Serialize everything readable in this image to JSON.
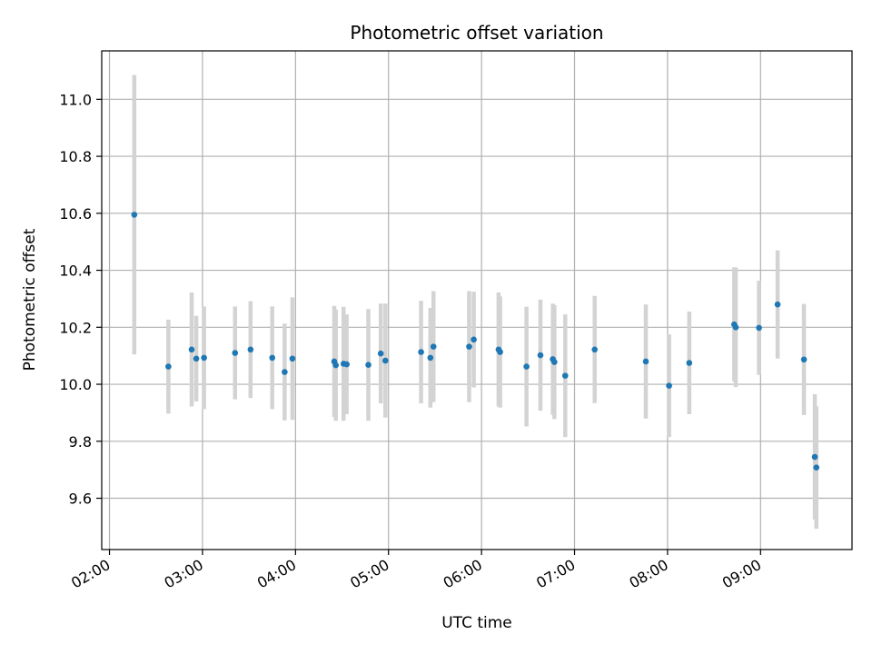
{
  "chart_data": {
    "type": "scatter",
    "title": "Photometric offset variation",
    "xlabel": "UTC time",
    "ylabel": "Photometric offset",
    "xlim": [
      "01:55",
      "09:59"
    ],
    "ylim": [
      9.42,
      11.17
    ],
    "grid": true,
    "colors": {
      "point": "#1f77b4",
      "errorbar": "#d3d3d3",
      "grid": "#b0b0b0"
    },
    "x_ticks": [
      "02:00",
      "03:00",
      "04:00",
      "05:00",
      "06:00",
      "07:00",
      "08:00",
      "09:00"
    ],
    "y_ticks": [
      "9.6",
      "9.8",
      "10.0",
      "10.2",
      "10.4",
      "10.6",
      "10.8",
      "11.0"
    ],
    "series": [
      {
        "points": [
          {
            "x": "02:16",
            "y": 10.595,
            "err": 0.49
          },
          {
            "x": "02:38",
            "y": 10.062,
            "err": 0.165
          },
          {
            "x": "02:53",
            "y": 10.122,
            "err": 0.2
          },
          {
            "x": "02:56",
            "y": 10.09,
            "err": 0.15
          },
          {
            "x": "03:01",
            "y": 10.093,
            "err": 0.18
          },
          {
            "x": "03:21",
            "y": 10.11,
            "err": 0.163
          },
          {
            "x": "03:31",
            "y": 10.122,
            "err": 0.17
          },
          {
            "x": "03:45",
            "y": 10.093,
            "err": 0.18
          },
          {
            "x": "03:53",
            "y": 10.043,
            "err": 0.17
          },
          {
            "x": "03:58",
            "y": 10.09,
            "err": 0.215
          },
          {
            "x": "04:25",
            "y": 10.08,
            "err": 0.195
          },
          {
            "x": "04:26",
            "y": 10.067,
            "err": 0.195
          },
          {
            "x": "04:31",
            "y": 10.072,
            "err": 0.2
          },
          {
            "x": "04:33",
            "y": 10.07,
            "err": 0.175
          },
          {
            "x": "04:47",
            "y": 10.068,
            "err": 0.196
          },
          {
            "x": "04:55",
            "y": 10.108,
            "err": 0.175
          },
          {
            "x": "04:58",
            "y": 10.083,
            "err": 0.2
          },
          {
            "x": "05:21",
            "y": 10.113,
            "err": 0.18
          },
          {
            "x": "05:27",
            "y": 10.093,
            "err": 0.175
          },
          {
            "x": "05:29",
            "y": 10.132,
            "err": 0.195
          },
          {
            "x": "05:52",
            "y": 10.132,
            "err": 0.195
          },
          {
            "x": "05:55",
            "y": 10.157,
            "err": 0.168
          },
          {
            "x": "06:11",
            "y": 10.122,
            "err": 0.2
          },
          {
            "x": "06:12",
            "y": 10.113,
            "err": 0.195
          },
          {
            "x": "06:29",
            "y": 10.062,
            "err": 0.21
          },
          {
            "x": "06:38",
            "y": 10.102,
            "err": 0.195
          },
          {
            "x": "06:46",
            "y": 10.088,
            "err": 0.195
          },
          {
            "x": "06:47",
            "y": 10.078,
            "err": 0.2
          },
          {
            "x": "06:54",
            "y": 10.03,
            "err": 0.215
          },
          {
            "x": "07:13",
            "y": 10.122,
            "err": 0.188
          },
          {
            "x": "07:46",
            "y": 10.08,
            "err": 0.2
          },
          {
            "x": "08:01",
            "y": 9.995,
            "err": 0.18
          },
          {
            "x": "08:14",
            "y": 10.075,
            "err": 0.18
          },
          {
            "x": "08:43",
            "y": 10.21,
            "err": 0.2
          },
          {
            "x": "08:44",
            "y": 10.2,
            "err": 0.21
          },
          {
            "x": "08:59",
            "y": 10.198,
            "err": 0.165
          },
          {
            "x": "09:11",
            "y": 10.28,
            "err": 0.19
          },
          {
            "x": "09:28",
            "y": 10.087,
            "err": 0.195
          },
          {
            "x": "09:35",
            "y": 9.745,
            "err": 0.22
          },
          {
            "x": "09:36",
            "y": 9.708,
            "err": 0.215
          }
        ]
      }
    ]
  }
}
